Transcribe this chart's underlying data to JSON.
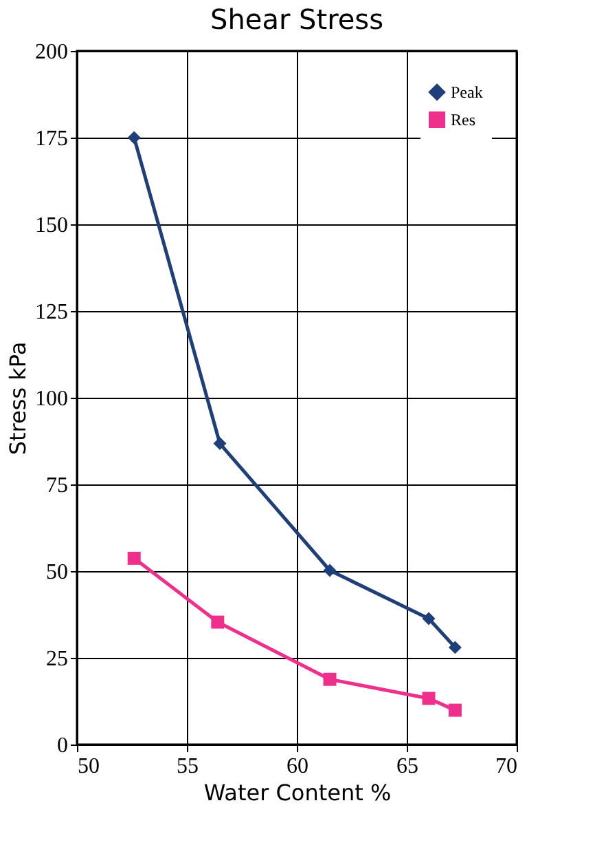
{
  "chart_data": {
    "type": "line",
    "title": "Shear Stress",
    "xlabel": "Water Content %",
    "ylabel": "Stress kPa",
    "xlim": [
      50,
      70
    ],
    "xticks": [
      50,
      55,
      60,
      65,
      70
    ],
    "ylim": [
      0,
      200
    ],
    "yticks": [
      0,
      25,
      50,
      75,
      100,
      125,
      150,
      175,
      200
    ],
    "grid": true,
    "legend": "top right",
    "line_style": "solid",
    "series": [
      {
        "name": "Peak",
        "color": "#1f3f7a",
        "marker": "diamond",
        "x": [
          52.6,
          56.5,
          61.5,
          66.0,
          67.2
        ],
        "values": [
          175,
          86.8,
          50.2,
          36.3,
          28
        ]
      },
      {
        "name": "Res",
        "color": "#ee2f8c",
        "marker": "square",
        "x": [
          52.6,
          56.4,
          61.5,
          66.0,
          67.2
        ],
        "values": [
          53.7,
          35.3,
          18.8,
          13.3,
          9.9
        ]
      }
    ]
  }
}
